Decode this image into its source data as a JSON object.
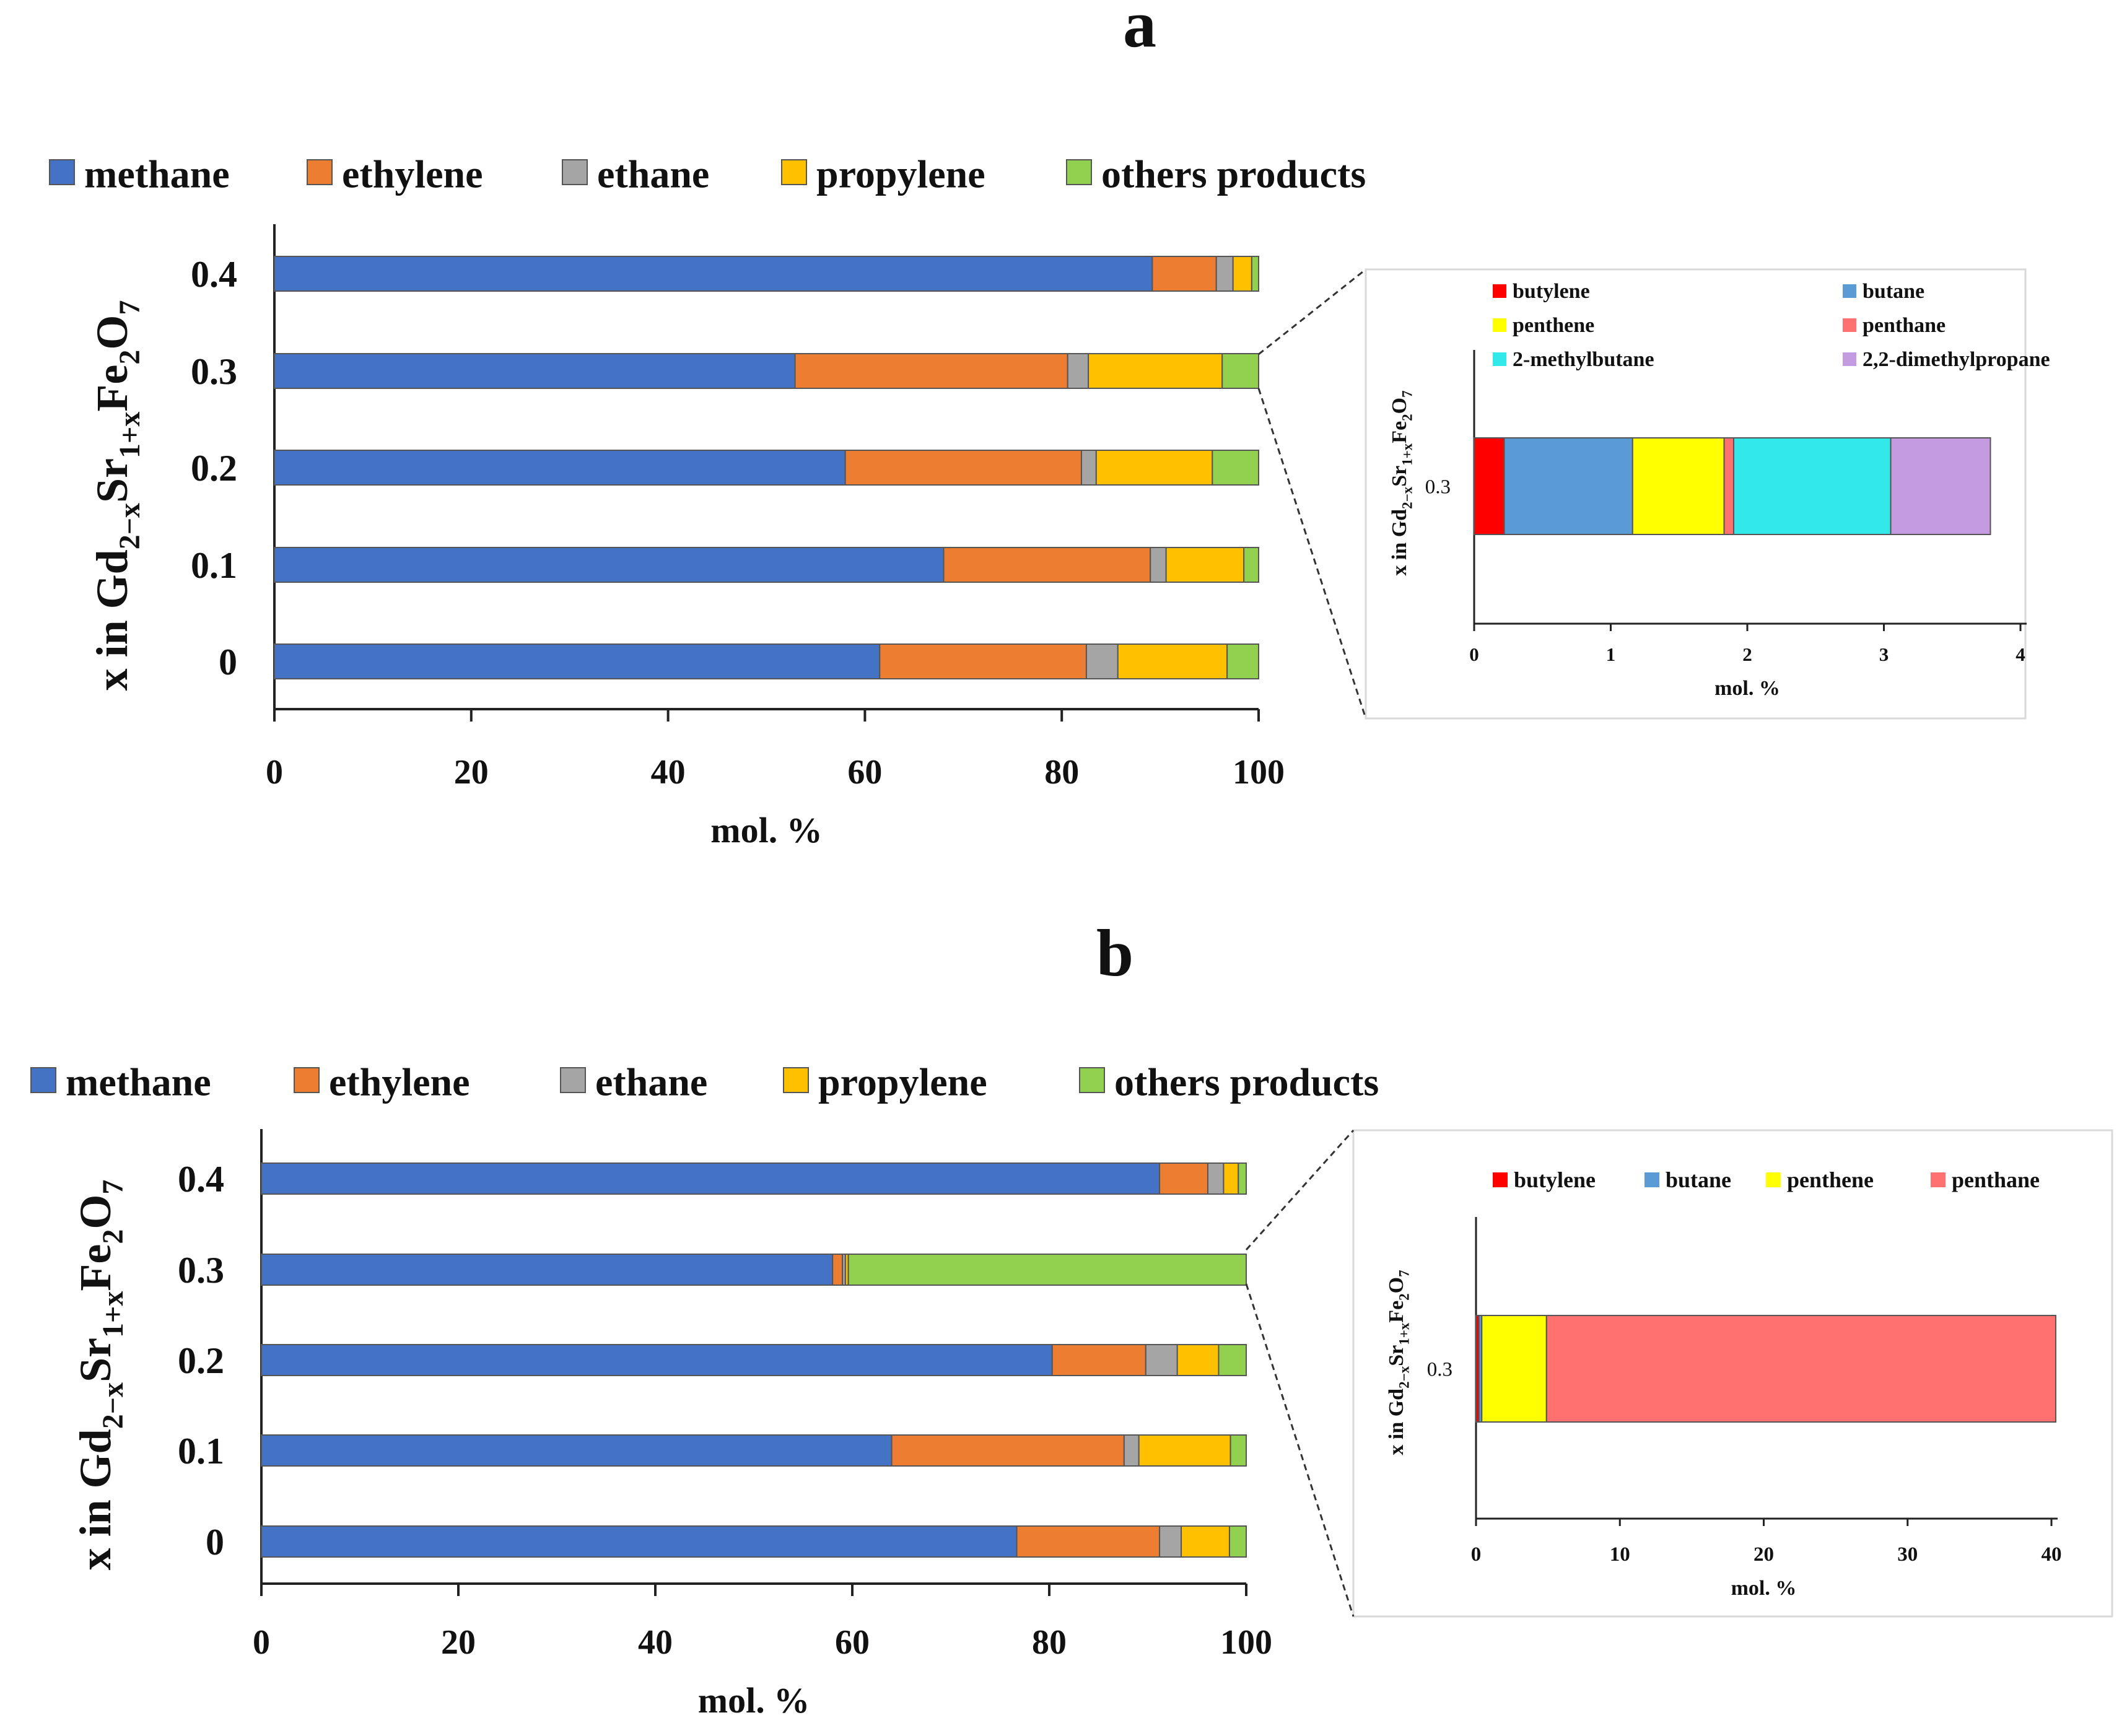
{
  "figure": {
    "panel_a_label": "a",
    "panel_b_label": "b"
  },
  "colors": {
    "methane": "#4472c4",
    "ethylene": "#ed7d31",
    "ethane": "#a5a5a5",
    "propylene": "#ffc000",
    "others products": "#92d050",
    "butylene": "#ff0000",
    "butane": "#5b9bd5",
    "penthene": "#ffff00",
    "penthane": "#ff7070",
    "2-methylbutane": "#33e8e8",
    "2,2-dimethylpropane": "#c49ae0"
  },
  "chart_data": [
    {
      "id": "a-main",
      "type": "bar",
      "orientation": "horizontal",
      "stacked": true,
      "categories": [
        "0.4",
        "0.3",
        "0.2",
        "0.1",
        "0"
      ],
      "series": [
        {
          "name": "methane",
          "values": [
            89.2,
            52.9,
            58.0,
            68.0,
            61.5
          ]
        },
        {
          "name": "ethylene",
          "values": [
            6.5,
            27.7,
            24.0,
            21.0,
            21.0
          ]
        },
        {
          "name": "ethane",
          "values": [
            1.7,
            2.1,
            1.5,
            1.6,
            3.2
          ]
        },
        {
          "name": "propylene",
          "values": [
            1.9,
            13.6,
            11.8,
            7.9,
            11.1
          ]
        },
        {
          "name": "others products",
          "values": [
            0.7,
            3.7,
            4.7,
            1.5,
            3.2
          ]
        }
      ],
      "xlabel": "mol. %",
      "ylabel_parts": [
        "x in Gd",
        "2−x",
        "Sr",
        "1+x",
        "Fe",
        "2",
        "O",
        "7"
      ],
      "xlim": [
        0,
        100
      ],
      "xticks": [
        "0",
        "20",
        "40",
        "60",
        "80",
        "100"
      ],
      "legend": [
        "methane",
        "ethylene",
        "ethane",
        "propylene",
        "others products"
      ]
    },
    {
      "id": "a-inset",
      "type": "bar",
      "orientation": "horizontal",
      "stacked": true,
      "categories": [
        "0.3"
      ],
      "series": [
        {
          "name": "butylene",
          "values": [
            0.22
          ]
        },
        {
          "name": "butane",
          "values": [
            0.94
          ]
        },
        {
          "name": "penthene",
          "values": [
            0.67
          ]
        },
        {
          "name": "penthane",
          "values": [
            0.07
          ]
        },
        {
          "name": "2-methylbutane",
          "values": [
            1.15
          ]
        },
        {
          "name": "2,2-dimethylpropane",
          "values": [
            0.73
          ]
        }
      ],
      "xlabel": "mol. %",
      "ylabel_parts": [
        "x in  Gd",
        "2−x",
        "Sr",
        "1+x",
        "Fe",
        "2",
        "O",
        "7"
      ],
      "xlim": [
        0,
        4
      ],
      "xticks": [
        "0",
        "1",
        "2",
        "3",
        "4"
      ],
      "legend": [
        "butylene",
        "butane",
        "penthene",
        "penthane",
        "2-methylbutane",
        "2,2-dimethylpropane"
      ]
    },
    {
      "id": "b-main",
      "type": "bar",
      "orientation": "horizontal",
      "stacked": true,
      "categories": [
        "0.4",
        "0.3",
        "0.2",
        "0.1",
        "0"
      ],
      "series": [
        {
          "name": "methane",
          "values": [
            91.2,
            58.0,
            80.3,
            64.0,
            76.7
          ]
        },
        {
          "name": "ethylene",
          "values": [
            4.9,
            1.0,
            9.5,
            23.6,
            14.5
          ]
        },
        {
          "name": "ethane",
          "values": [
            1.6,
            0.3,
            3.2,
            1.5,
            2.2
          ]
        },
        {
          "name": "propylene",
          "values": [
            1.5,
            0.3,
            4.2,
            9.3,
            4.9
          ]
        },
        {
          "name": "others products",
          "values": [
            0.8,
            40.4,
            2.8,
            1.6,
            1.7
          ]
        }
      ],
      "xlabel": "mol. %",
      "ylabel_parts": [
        "x in Gd",
        "2−x",
        "Sr",
        "1+x",
        "Fe",
        "2",
        "O",
        "7"
      ],
      "xlim": [
        0,
        100
      ],
      "xticks": [
        "0",
        "20",
        "40",
        "60",
        "80",
        "100"
      ],
      "legend": [
        "methane",
        "ethylene",
        "ethane",
        "propylene",
        "others products"
      ]
    },
    {
      "id": "b-inset",
      "type": "bar",
      "orientation": "horizontal",
      "stacked": true,
      "categories": [
        "0.3"
      ],
      "series": [
        {
          "name": "butylene",
          "values": [
            0.2
          ]
        },
        {
          "name": "butane",
          "values": [
            0.2
          ]
        },
        {
          "name": "penthene",
          "values": [
            4.5
          ]
        },
        {
          "name": "penthane",
          "values": [
            35.4
          ]
        }
      ],
      "xlabel": "mol. %",
      "ylabel_parts": [
        "x in  Gd",
        "2−x",
        "Sr",
        "1+x",
        "Fe",
        "2",
        "O",
        "7"
      ],
      "xlim": [
        0,
        40
      ],
      "xticks": [
        "0",
        "10",
        "20",
        "30",
        "40"
      ],
      "legend": [
        "butylene",
        "butane",
        "penthene",
        "penthane"
      ]
    }
  ]
}
